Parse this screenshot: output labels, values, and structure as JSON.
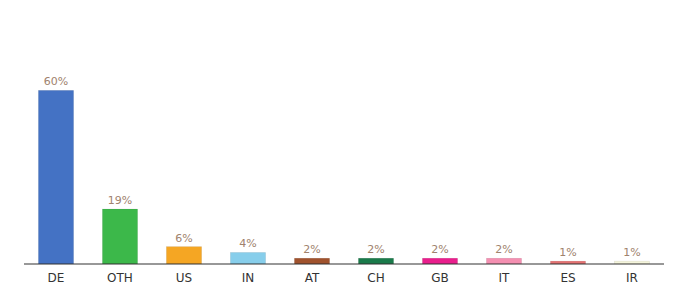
{
  "chart_data": {
    "type": "bar",
    "categories": [
      "DE",
      "OTH",
      "US",
      "IN",
      "AT",
      "CH",
      "GB",
      "IT",
      "ES",
      "IR"
    ],
    "values": [
      60,
      19,
      6,
      4,
      2,
      2,
      2,
      2,
      1,
      1
    ],
    "value_labels": [
      "60%",
      "19%",
      "6%",
      "4%",
      "2%",
      "2%",
      "2%",
      "2%",
      "1%",
      "1%"
    ],
    "colors": [
      "#4472C4",
      "#3CB84A",
      "#F5A623",
      "#87CEEB",
      "#A0522D",
      "#1A7A4A",
      "#E91E8C",
      "#F48FB1",
      "#E57373",
      "#F5F5DC"
    ],
    "ylim": [
      0,
      85
    ],
    "grid": false,
    "data_labels": true,
    "tick_labels": "x"
  }
}
